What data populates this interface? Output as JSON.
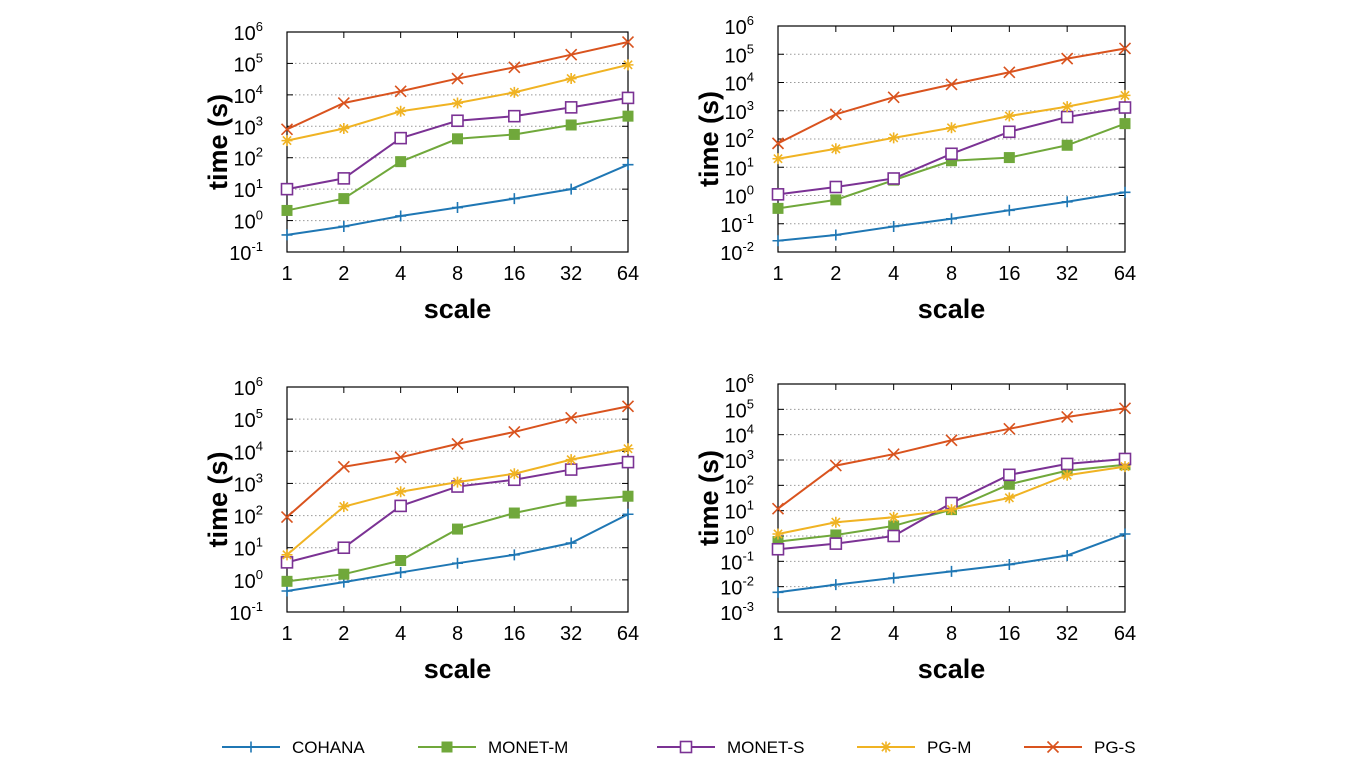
{
  "colors": {
    "COHANA": "#1f77b4",
    "MONET-M": "#70a83b",
    "MONET-S": "#7b3294",
    "PG-M": "#f0b323",
    "PG-S": "#d9531e",
    "grid": "#999999",
    "axis": "#000000"
  },
  "legend": {
    "placement": "bottom",
    "entries": [
      {
        "name": "COHANA",
        "marker": "plus"
      },
      {
        "name": "MONET-M",
        "marker": "filled-square"
      },
      {
        "name": "MONET-S",
        "marker": "open-square"
      },
      {
        "name": "PG-M",
        "marker": "asterisk"
      },
      {
        "name": "PG-S",
        "marker": "cross"
      }
    ]
  },
  "chart_data": [
    {
      "type": "line",
      "xlabel": "scale",
      "ylabel": "time (s)",
      "yscale": "log",
      "ylim": [
        0.1,
        1000000
      ],
      "ytick_exponents": [
        -1,
        0,
        1,
        2,
        3,
        4,
        5,
        6
      ],
      "categories": [
        "1",
        "2",
        "4",
        "8",
        "16",
        "32",
        "64"
      ],
      "grid": true,
      "series": [
        {
          "name": "COHANA",
          "values": [
            0.35,
            0.65,
            1.4,
            2.6,
            5,
            10,
            60
          ]
        },
        {
          "name": "MONET-M",
          "values": [
            2.1,
            5,
            75,
            400,
            550,
            1100,
            2100
          ]
        },
        {
          "name": "MONET-S",
          "values": [
            10,
            22,
            420,
            1500,
            2100,
            4000,
            8000
          ]
        },
        {
          "name": "PG-M",
          "values": [
            350,
            850,
            3000,
            5500,
            12000,
            33000,
            90000
          ]
        },
        {
          "name": "PG-S",
          "values": [
            800,
            5500,
            13000,
            33000,
            75000,
            190000,
            480000
          ]
        }
      ]
    },
    {
      "type": "line",
      "xlabel": "scale",
      "ylabel": "time (s)",
      "yscale": "log",
      "ylim": [
        0.01,
        1000000
      ],
      "ytick_exponents": [
        -2,
        -1,
        0,
        1,
        2,
        3,
        4,
        5,
        6
      ],
      "categories": [
        "1",
        "2",
        "4",
        "8",
        "16",
        "32",
        "64"
      ],
      "grid": true,
      "series": [
        {
          "name": "COHANA",
          "values": [
            0.025,
            0.04,
            0.08,
            0.15,
            0.3,
            0.6,
            1.3
          ]
        },
        {
          "name": "MONET-M",
          "values": [
            0.35,
            0.7,
            3.5,
            17,
            22,
            60,
            350
          ]
        },
        {
          "name": "MONET-S",
          "values": [
            1.1,
            2,
            4,
            30,
            180,
            600,
            1300
          ]
        },
        {
          "name": "PG-M",
          "values": [
            20,
            45,
            110,
            250,
            650,
            1400,
            3500
          ]
        },
        {
          "name": "PG-S",
          "values": [
            70,
            750,
            3000,
            8500,
            23000,
            70000,
            160000
          ]
        }
      ]
    },
    {
      "type": "line",
      "xlabel": "scale",
      "ylabel": "time (s)",
      "yscale": "log",
      "ylim": [
        0.1,
        1000000
      ],
      "ytick_exponents": [
        -1,
        0,
        1,
        2,
        3,
        4,
        5,
        6
      ],
      "categories": [
        "1",
        "2",
        "4",
        "8",
        "16",
        "32",
        "64"
      ],
      "grid": true,
      "series": [
        {
          "name": "COHANA",
          "values": [
            0.45,
            0.85,
            1.7,
            3.3,
            6,
            14,
            110
          ]
        },
        {
          "name": "MONET-M",
          "values": [
            0.9,
            1.5,
            4,
            38,
            120,
            280,
            400
          ]
        },
        {
          "name": "MONET-S",
          "values": [
            3.5,
            10,
            200,
            800,
            1300,
            2700,
            4600
          ]
        },
        {
          "name": "PG-M",
          "values": [
            6,
            190,
            550,
            1100,
            2000,
            5500,
            12000
          ]
        },
        {
          "name": "PG-S",
          "values": [
            90,
            3300,
            6500,
            17000,
            40000,
            110000,
            250000
          ]
        }
      ]
    },
    {
      "type": "line",
      "xlabel": "scale",
      "ylabel": "time (s)",
      "yscale": "log",
      "ylim": [
        0.001,
        1000000
      ],
      "ytick_exponents": [
        -3,
        -2,
        -1,
        0,
        1,
        2,
        3,
        4,
        5,
        6
      ],
      "categories": [
        "1",
        "2",
        "4",
        "8",
        "16",
        "32",
        "64"
      ],
      "grid": true,
      "series": [
        {
          "name": "COHANA",
          "values": [
            0.006,
            0.012,
            0.022,
            0.04,
            0.075,
            0.17,
            1.2
          ]
        },
        {
          "name": "MONET-M",
          "values": [
            0.6,
            1.1,
            2.5,
            11,
            110,
            380,
            650
          ]
        },
        {
          "name": "MONET-S",
          "values": [
            0.3,
            0.5,
            1,
            20,
            260,
            700,
            1100
          ]
        },
        {
          "name": "PG-M",
          "values": [
            1.2,
            3.5,
            5.5,
            11,
            32,
            250,
            550
          ]
        },
        {
          "name": "PG-S",
          "values": [
            12,
            600,
            1700,
            6000,
            17000,
            50000,
            110000
          ]
        }
      ]
    }
  ]
}
